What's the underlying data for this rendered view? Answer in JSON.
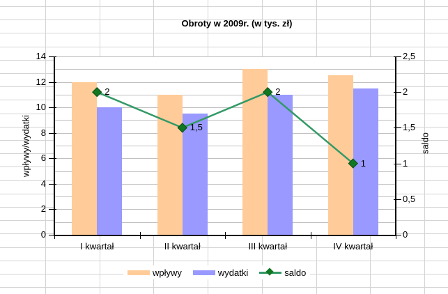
{
  "sheet": {
    "grid_color": "#d4d4d4"
  },
  "chart_data": {
    "type": "combo-bar-line",
    "title": "Obroty w 2009r. (w tys. zł)",
    "categories": [
      "I kwartał",
      "II kwartał",
      "III kwartał",
      "IV kwartał"
    ],
    "series": [
      {
        "name": "wpływy",
        "type": "bar",
        "axis": "left",
        "color": "#FFCC99",
        "values": [
          12,
          11,
          13,
          12.5
        ]
      },
      {
        "name": "wydatki",
        "type": "bar",
        "axis": "left",
        "color": "#9999FF",
        "values": [
          10,
          9.5,
          11,
          11.5
        ]
      },
      {
        "name": "saldo",
        "type": "line",
        "axis": "right",
        "color": "#339966",
        "marker_color": "#117722",
        "values": [
          2,
          1.5,
          2,
          1
        ],
        "point_labels": [
          "2",
          "1,5",
          "2",
          "1"
        ]
      }
    ],
    "left_axis": {
      "title": "wpływy/wydatki",
      "min": 0,
      "max": 14,
      "tick_labels": [
        "0",
        "2",
        "4",
        "6",
        "8",
        "10",
        "12",
        "14"
      ]
    },
    "right_axis": {
      "title": "saldo",
      "min": 0,
      "max": 2.5,
      "tick_labels": [
        "0",
        "0,5",
        "1",
        "1,5",
        "2",
        "2,5"
      ]
    },
    "legend_position": "bottom",
    "grid": true,
    "gridline_color": "#c0c0c0",
    "plot_bg": "#ffffff"
  }
}
